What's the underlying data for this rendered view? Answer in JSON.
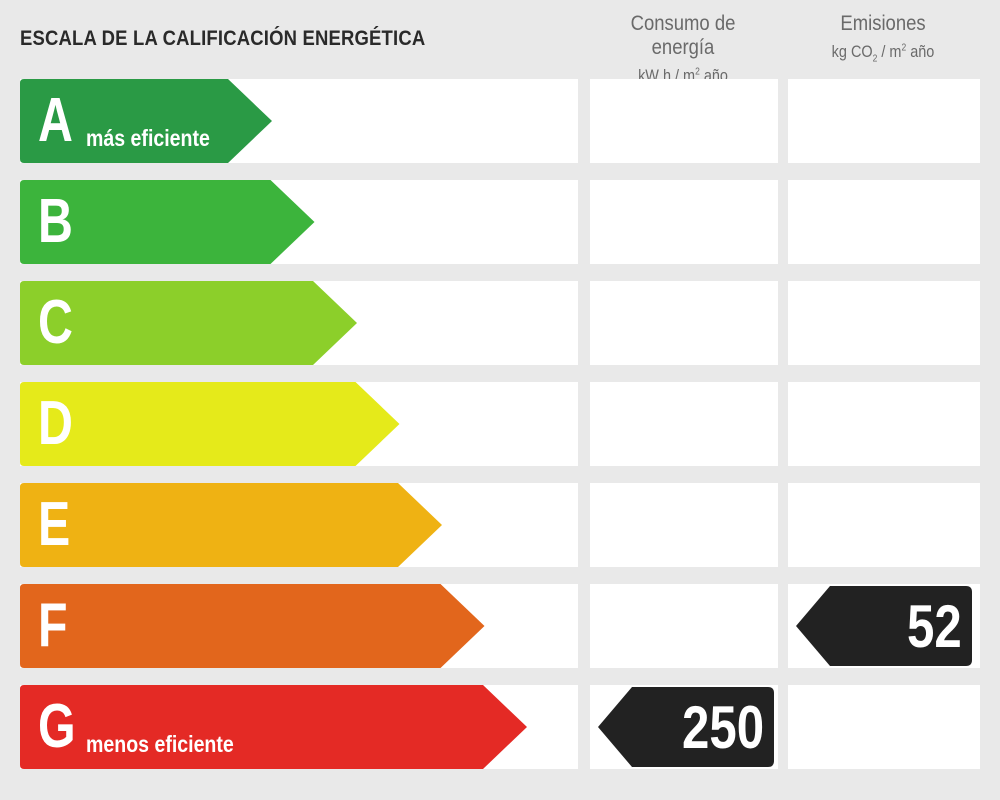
{
  "title": "ESCALA DE LA CALIFICACIÓN ENERGÉTICA",
  "columns": {
    "energy": {
      "title": "Consumo de energía",
      "unit_a": "kW h / m",
      "unit_sup": "2",
      "unit_b": " año"
    },
    "emissions": {
      "title": "Emisiones",
      "unit_a": "kg CO",
      "unit_sub": "2",
      "unit_b": " / m",
      "unit_sup": "2",
      "unit_c": " año"
    }
  },
  "ratings": [
    {
      "letter": "A",
      "label": "más eficiente",
      "color": "#2a9a45"
    },
    {
      "letter": "B",
      "label": "",
      "color": "#3cb43c"
    },
    {
      "letter": "C",
      "label": "",
      "color": "#8ccf2a"
    },
    {
      "letter": "D",
      "label": "",
      "color": "#e5ea1a"
    },
    {
      "letter": "E",
      "label": "",
      "color": "#efb213"
    },
    {
      "letter": "F",
      "label": "",
      "color": "#e2661c"
    },
    {
      "letter": "G",
      "label": "menos eficiente",
      "color": "#e42a25"
    }
  ],
  "result": {
    "energy": {
      "value": "250",
      "rating": "G"
    },
    "emissions": {
      "value": "52",
      "rating": "F"
    }
  },
  "badge_color": "#222222"
}
